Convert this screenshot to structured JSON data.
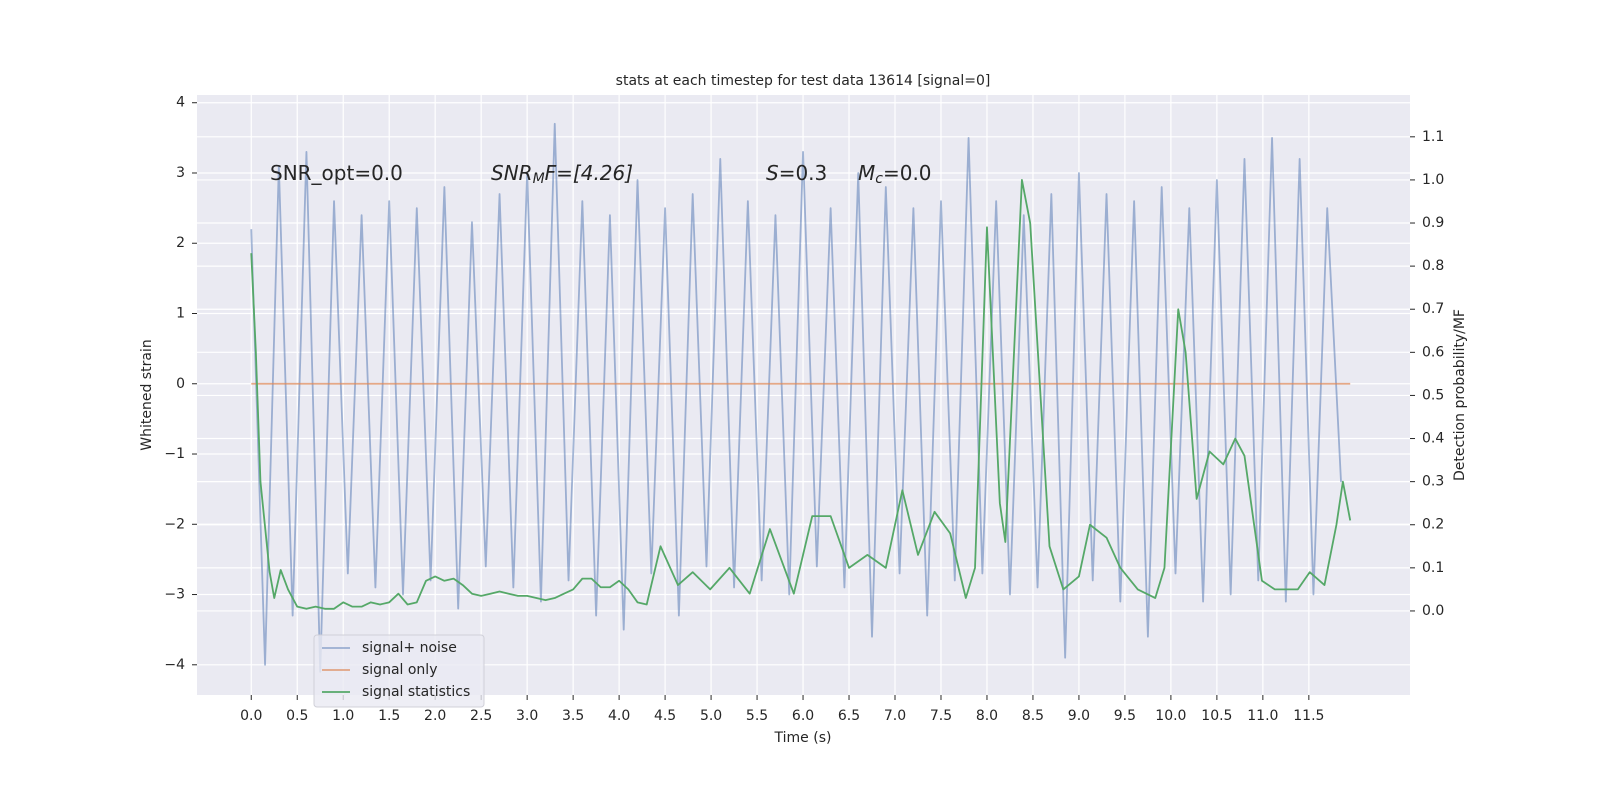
{
  "chart_data": {
    "type": "line",
    "title": "stats at each timestep for test data 13614 [signal=0]",
    "xlabel": "Time (s)",
    "ylabel": "Whitened strain",
    "y2label": "Detection probability/MF",
    "xlim": [
      -0.59,
      12.6
    ],
    "ylim": [
      -4.43,
      4.11
    ],
    "y2lim": [
      -0.195,
      1.197
    ],
    "grid": true,
    "legend": "lower left",
    "xticks": [
      {
        "value": 0,
        "label": "0.0"
      },
      {
        "value": 0.5,
        "label": "0.5"
      },
      {
        "value": 1,
        "label": "1.0"
      },
      {
        "value": 1.5,
        "label": "1.5"
      },
      {
        "value": 2,
        "label": "2.0"
      },
      {
        "value": 2.5,
        "label": "2.5"
      },
      {
        "value": 3,
        "label": "3.0"
      },
      {
        "value": 3.5,
        "label": "3.5"
      },
      {
        "value": 4,
        "label": "4.0"
      },
      {
        "value": 4.5,
        "label": "4.5"
      },
      {
        "value": 5,
        "label": "5.0"
      },
      {
        "value": 5.5,
        "label": "5.5"
      },
      {
        "value": 6,
        "label": "6.0"
      },
      {
        "value": 6.5,
        "label": "6.5"
      },
      {
        "value": 7,
        "label": "7.0"
      },
      {
        "value": 7.5,
        "label": "7.5"
      },
      {
        "value": 8,
        "label": "8.0"
      },
      {
        "value": 8.5,
        "label": "8.5"
      },
      {
        "value": 9,
        "label": "9.0"
      },
      {
        "value": 9.5,
        "label": "9.5"
      },
      {
        "value": 10,
        "label": "10.0"
      },
      {
        "value": 10.5,
        "label": "10.5"
      },
      {
        "value": 11,
        "label": "11.0"
      },
      {
        "value": 11.5,
        "label": "11.5"
      }
    ],
    "yticks": [
      {
        "value": -4,
        "label": "−4"
      },
      {
        "value": -3,
        "label": "−3"
      },
      {
        "value": -2,
        "label": "−2"
      },
      {
        "value": -1,
        "label": "−1"
      },
      0,
      1,
      2,
      3,
      4
    ],
    "y2ticks": [
      {
        "value": 0,
        "label": "0.0"
      },
      0.1,
      0.2,
      0.3,
      0.4,
      0.5,
      0.6,
      0.7,
      0.8,
      0.9,
      {
        "value": 1,
        "label": "1.0"
      },
      1.1
    ],
    "annotations": [
      {
        "parts": [
          "SNR_opt=0.0"
        ]
      },
      {
        "parts": [
          "SNR",
          "M",
          "F=[4.26]"
        ]
      },
      {
        "parts": [
          "S",
          "=0.3"
        ]
      },
      {
        "parts": [
          "M",
          "c",
          "=0.0"
        ]
      }
    ],
    "series": [
      {
        "name": "signal+ noise",
        "color": "#4c72b0",
        "x": [
          0,
          0.15,
          0.3,
          0.45,
          0.6,
          0.75,
          0.9,
          1.05,
          1.2,
          1.35,
          1.5,
          1.65,
          1.8,
          1.95,
          2.1,
          2.25,
          2.4,
          2.55,
          2.7,
          2.85,
          3,
          3.15,
          3.3,
          3.45,
          3.6,
          3.75,
          3.9,
          4.05,
          4.2,
          4.35,
          4.5,
          4.65,
          4.8,
          4.95,
          5.1,
          5.25,
          5.4,
          5.55,
          5.7,
          5.85,
          6,
          6.15,
          6.3,
          6.45,
          6.6,
          6.75,
          6.9,
          7.05,
          7.2,
          7.35,
          7.5,
          7.65,
          7.8,
          7.95,
          8.1,
          8.25,
          8.4,
          8.55,
          8.7,
          8.85,
          9,
          9.15,
          9.3,
          9.45,
          9.6,
          9.75,
          9.9,
          10.05,
          10.2,
          10.35,
          10.5,
          10.65,
          10.8,
          10.95,
          11.1,
          11.25,
          11.4,
          11.55,
          11.7,
          11.85
        ],
        "values": [
          2.2,
          -4.0,
          3.1,
          -3.3,
          3.3,
          -4.1,
          2.6,
          -2.7,
          2.4,
          -2.9,
          2.6,
          -3.0,
          2.5,
          -2.8,
          2.8,
          -3.2,
          2.3,
          -2.6,
          2.7,
          -2.9,
          3.0,
          -3.1,
          3.7,
          -2.8,
          2.6,
          -3.3,
          2.4,
          -3.5,
          2.9,
          -2.7,
          2.5,
          -3.3,
          2.7,
          -2.6,
          3.2,
          -2.9,
          2.6,
          -2.8,
          2.4,
          -3.0,
          3.3,
          -2.6,
          2.5,
          -2.9,
          3.0,
          -3.6,
          2.8,
          -2.7,
          2.5,
          -3.3,
          2.6,
          -2.8,
          3.5,
          -2.7,
          2.6,
          -3.0,
          2.4,
          -2.9,
          2.7,
          -3.9,
          3.0,
          -2.8,
          2.7,
          -3.1,
          2.6,
          -3.6,
          2.8,
          -2.7,
          2.5,
          -3.1,
          2.9,
          -3.0,
          3.2,
          -2.8,
          3.5,
          -3.1,
          3.2,
          -3.0,
          2.5,
          -1.4
        ]
      },
      {
        "name": "signal only",
        "color": "#dd8452",
        "x": [
          0,
          11.95
        ],
        "values": [
          0,
          0
        ]
      },
      {
        "name": "signal statistics",
        "color": "#55a868",
        "axis": "y2",
        "x": [
          0,
          0.05,
          0.1,
          0.2,
          0.25,
          0.32,
          0.4,
          0.5,
          0.6,
          0.7,
          0.8,
          0.9,
          1.0,
          1.1,
          1.2,
          1.3,
          1.4,
          1.5,
          1.6,
          1.7,
          1.8,
          1.9,
          2.0,
          2.1,
          2.2,
          2.3,
          2.4,
          2.5,
          2.6,
          2.7,
          2.8,
          2.9,
          3.0,
          3.1,
          3.2,
          3.3,
          3.4,
          3.5,
          3.6,
          3.7,
          3.8,
          3.9,
          4.0,
          4.1,
          4.2,
          4.3,
          4.45,
          4.64,
          4.8,
          4.99,
          5.2,
          5.42,
          5.64,
          5.9,
          6.1,
          6.3,
          6.5,
          6.7,
          6.9,
          7.08,
          7.25,
          7.43,
          7.6,
          7.77,
          7.87,
          8.0,
          8.14,
          8.2,
          8.38,
          8.47,
          8.68,
          8.83,
          9.0,
          9.12,
          9.3,
          9.45,
          9.64,
          9.83,
          9.93,
          10.08,
          10.16,
          10.28,
          10.42,
          10.57,
          10.7,
          10.8,
          10.99,
          11.13,
          11.38,
          11.51,
          11.67,
          11.8,
          11.87,
          11.95
        ],
        "values": [
          0.83,
          0.6,
          0.3,
          0.09,
          0.03,
          0.095,
          0.05,
          0.01,
          0.005,
          0.01,
          0.005,
          0.005,
          0.02,
          0.01,
          0.01,
          0.02,
          0.015,
          0.02,
          0.04,
          0.015,
          0.02,
          0.07,
          0.08,
          0.07,
          0.075,
          0.06,
          0.04,
          0.035,
          0.04,
          0.045,
          0.04,
          0.035,
          0.035,
          0.03,
          0.025,
          0.03,
          0.04,
          0.05,
          0.075,
          0.075,
          0.055,
          0.055,
          0.07,
          0.05,
          0.02,
          0.015,
          0.15,
          0.06,
          0.09,
          0.05,
          0.1,
          0.04,
          0.19,
          0.04,
          0.22,
          0.22,
          0.1,
          0.13,
          0.1,
          0.28,
          0.13,
          0.23,
          0.18,
          0.03,
          0.1,
          0.89,
          0.25,
          0.16,
          1.0,
          0.9,
          0.15,
          0.05,
          0.08,
          0.2,
          0.17,
          0.1,
          0.05,
          0.03,
          0.1,
          0.7,
          0.6,
          0.26,
          0.37,
          0.34,
          0.4,
          0.36,
          0.07,
          0.05,
          0.05,
          0.09,
          0.06,
          0.2,
          0.3,
          0.21
        ]
      }
    ]
  }
}
